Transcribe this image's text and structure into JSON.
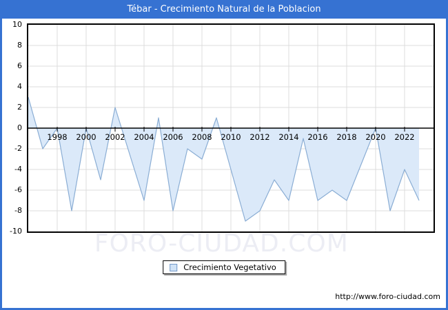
{
  "window": {
    "title": "Tébar - Crecimiento Natural de la Poblacion"
  },
  "chart_data": {
    "type": "area",
    "title": "Tébar - Crecimiento Natural de la Poblacion",
    "series_name": "Crecimiento Vegetativo",
    "x": [
      1996,
      1997,
      1998,
      1999,
      2000,
      2001,
      2002,
      2003,
      2004,
      2005,
      2006,
      2007,
      2008,
      2009,
      2010,
      2011,
      2012,
      2013,
      2014,
      2015,
      2016,
      2017,
      2018,
      2019,
      2020,
      2021,
      2022,
      2023
    ],
    "values": [
      3,
      -2,
      0,
      -8,
      0,
      -5,
      2,
      -2.5,
      -7,
      1,
      -8,
      -2,
      -3,
      1,
      -4,
      -9,
      -8,
      -5,
      -7,
      -1,
      -7,
      -6,
      -7,
      -3.5,
      0,
      -8,
      -4,
      -7
    ],
    "xlim": [
      1996,
      2024
    ],
    "ylim": [
      -10,
      10
    ],
    "y_ticks": [
      10,
      8,
      6,
      4,
      2,
      0,
      -2,
      -4,
      -6,
      -8,
      -10
    ],
    "x_tick_labels": [
      "1998",
      "2000",
      "2002",
      "2004",
      "2006",
      "2008",
      "2010",
      "2012",
      "2014",
      "2016",
      "2018",
      "2020",
      "2022"
    ],
    "grid": true,
    "legend_position": "bottom-center",
    "baseline": 0
  },
  "legend": {
    "label": "Crecimiento Vegetativo"
  },
  "watermark": {
    "text": "FORO-CIUDAD.COM"
  },
  "footer": {
    "url": "http://www.foro-ciudad.com"
  },
  "colors": {
    "titlebar": "#3672d2",
    "frame_border": "#3672d2",
    "area_fill": "#dbe9f9",
    "line": "#8aadd4",
    "grid": "#dcdcdc",
    "axis": "#000000",
    "legend_swatch_fill": "#cfe2f6",
    "legend_swatch_border": "#7298c8",
    "watermark": "#ecedf4"
  }
}
